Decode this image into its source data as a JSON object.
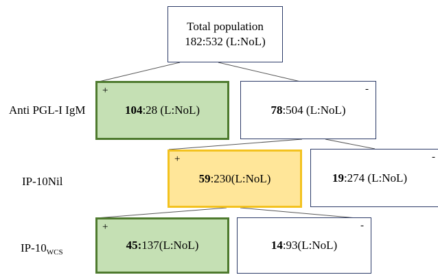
{
  "root": {
    "line1": "Total population",
    "line2": "182:532 (L:NoL)"
  },
  "levels": [
    {
      "label": "Anti PGL-I IgM",
      "positive": {
        "sign": "+",
        "bold": "104",
        "rest": ":28 (L:NoL)"
      },
      "negative": {
        "sign": "-",
        "bold": "78",
        "rest": ":504 (L:NoL)"
      }
    },
    {
      "label": "IP-10Nil",
      "positive": {
        "sign": "+",
        "bold": "59",
        "rest": ":230(L:NoL)"
      },
      "negative": {
        "sign": "-",
        "bold": "19",
        "rest": ":274 (L:NoL)"
      }
    },
    {
      "label_main": "IP-10",
      "label_sub": "WCS",
      "positive": {
        "sign": "+",
        "bold": "45:",
        "rest": "137(L:NoL)"
      },
      "negative": {
        "sign": "-",
        "bold": "14",
        "rest": ":93(L:NoL)"
      }
    }
  ],
  "colors": {
    "border_plain": "#2b3a67",
    "green_fill": "#c5e0b4",
    "green_border": "#4e7a2e",
    "yellow_fill": "#ffe699",
    "yellow_border": "#f3c21f",
    "connector": "#555555"
  }
}
